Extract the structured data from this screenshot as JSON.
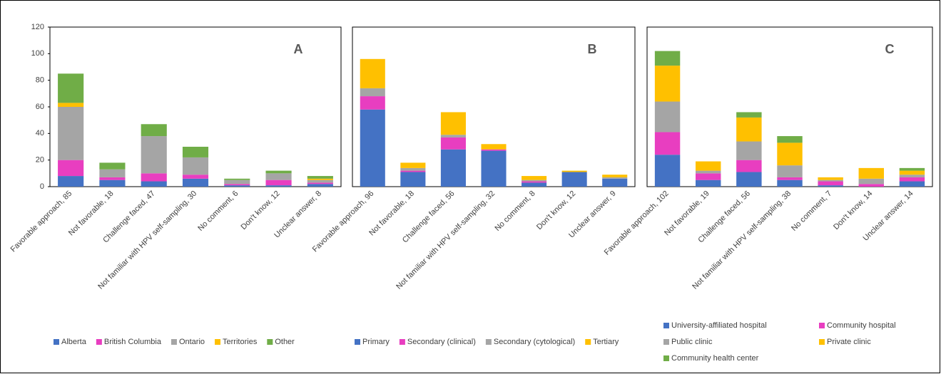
{
  "chart_data": [
    {
      "type": "bar",
      "stacked": true,
      "annotation": "A",
      "categories": [
        "Favorable approach, 85",
        "Not favorable, 18",
        "Challenge faced, 47",
        "Not familiar with HPV self-sampling, 30",
        "No comment, 6",
        "Don't know, 12",
        "Unclear answer, 8"
      ],
      "series": [
        {
          "name": "Alberta",
          "color": "#4472c4",
          "values": [
            8,
            5,
            4,
            6,
            1,
            1,
            2
          ]
        },
        {
          "name": "British Columbia",
          "color": "#e83ec0",
          "values": [
            12,
            2,
            6,
            3,
            1,
            4,
            1
          ]
        },
        {
          "name": "Ontario",
          "color": "#a5a5a5",
          "values": [
            40,
            6,
            28,
            13,
            3,
            5,
            2
          ]
        },
        {
          "name": "Territories",
          "color": "#ffc000",
          "values": [
            3,
            0,
            0,
            0,
            0,
            0,
            1
          ]
        },
        {
          "name": "Other",
          "color": "#70ad47",
          "values": [
            22,
            5,
            9,
            8,
            1,
            2,
            2
          ]
        }
      ],
      "ylim": [
        0,
        120
      ],
      "yticks": [
        0,
        20,
        40,
        60,
        80,
        100,
        120
      ]
    },
    {
      "type": "bar",
      "stacked": true,
      "annotation": "B",
      "categories": [
        "Favorable approach, 96",
        "Not favorable, 18",
        "Challenge faced, 56",
        "Not familiar with HPV self-sampling, 32",
        "No comment, 8",
        "Don't know, 12",
        "Unclear answer, 9"
      ],
      "series": [
        {
          "name": "Primary",
          "color": "#4472c4",
          "values": [
            58,
            11,
            28,
            27,
            3,
            11,
            6
          ]
        },
        {
          "name": "Secondary (clinical)",
          "color": "#e83ec0",
          "values": [
            10,
            1,
            9,
            1,
            1,
            0,
            0
          ]
        },
        {
          "name": "Secondary (cytological)",
          "color": "#a5a5a5",
          "values": [
            6,
            2,
            2,
            0,
            1,
            0,
            1
          ]
        },
        {
          "name": "Tertiary",
          "color": "#ffc000",
          "values": [
            22,
            4,
            17,
            4,
            3,
            1,
            2
          ]
        }
      ],
      "ylim": [
        0,
        120
      ]
    },
    {
      "type": "bar",
      "stacked": true,
      "annotation": "C",
      "categories": [
        "Favorable approach, 102",
        "Not favorable, 19",
        "Challenge faced, 56",
        "Not familiar with HPV self-sampling, 38",
        "No comment, 7",
        "Don't know, 14",
        "Unclear answer, 14"
      ],
      "series": [
        {
          "name": "University-affiliated hospital",
          "color": "#4472c4",
          "values": [
            24,
            5,
            11,
            5,
            1,
            0,
            4
          ]
        },
        {
          "name": "Community hospital",
          "color": "#e83ec0",
          "values": [
            17,
            5,
            9,
            2,
            3,
            2,
            3
          ]
        },
        {
          "name": "Public clinic",
          "color": "#a5a5a5",
          "values": [
            23,
            2,
            14,
            9,
            1,
            4,
            2
          ]
        },
        {
          "name": "Private clinic",
          "color": "#ffc000",
          "values": [
            27,
            7,
            18,
            17,
            2,
            8,
            3
          ]
        },
        {
          "name": "Community health center",
          "color": "#70ad47",
          "values": [
            11,
            0,
            4,
            5,
            0,
            0,
            2
          ]
        }
      ],
      "ylim": [
        0,
        120
      ]
    }
  ]
}
